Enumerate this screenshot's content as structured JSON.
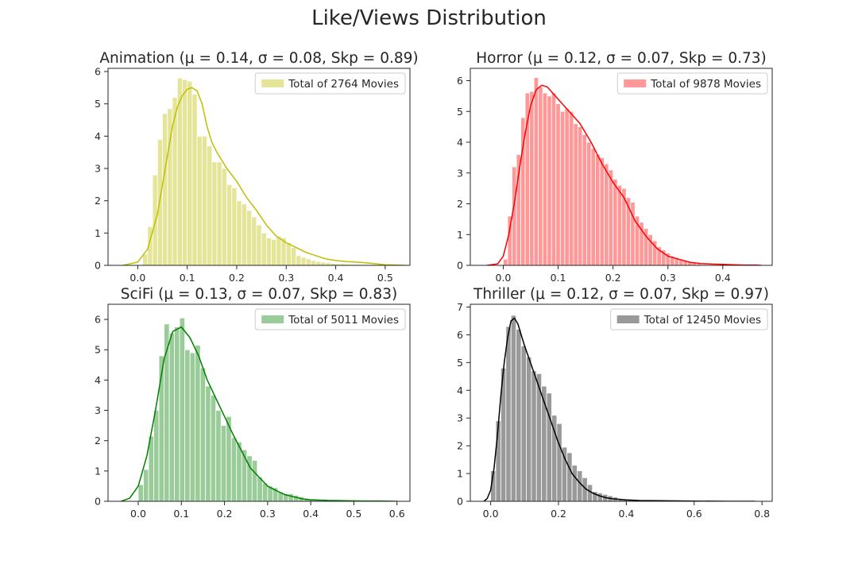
{
  "title": "Like/Views Distribution",
  "chart_data": [
    {
      "type": "histogram",
      "title": "Animation (μ = 0.14, σ = 0.08, Skp = 0.89)",
      "legend": "Total of 2764 Movies",
      "legend_position": "top-right",
      "bar_color": "#bfbf00",
      "bar_opacity": 0.4,
      "kde_color": "#bfbf00",
      "xlim": [
        -0.06,
        0.55
      ],
      "ylim": [
        0,
        6.1
      ],
      "xticks": [
        "0.0",
        "0.1",
        "0.2",
        "0.3",
        "0.4",
        "0.5"
      ],
      "yticks": [
        "0",
        "1",
        "2",
        "3",
        "4",
        "5",
        "6"
      ],
      "bin_width": 0.01,
      "bins_x": [
        0.01,
        0.02,
        0.03,
        0.04,
        0.05,
        0.06,
        0.07,
        0.08,
        0.09,
        0.1,
        0.11,
        0.12,
        0.13,
        0.14,
        0.15,
        0.16,
        0.17,
        0.18,
        0.19,
        0.2,
        0.21,
        0.22,
        0.23,
        0.24,
        0.25,
        0.26,
        0.27,
        0.28,
        0.29,
        0.3,
        0.31,
        0.32,
        0.33,
        0.34,
        0.35,
        0.36,
        0.37,
        0.38,
        0.39,
        0.4,
        0.41,
        0.42,
        0.43,
        0.44,
        0.45,
        0.46,
        0.47,
        0.48,
        0.49,
        0.5
      ],
      "bins_y": [
        0.35,
        1.2,
        2.8,
        3.9,
        4.7,
        4.85,
        5.2,
        5.8,
        5.75,
        5.7,
        5.3,
        4.0,
        4.0,
        3.7,
        3.2,
        3.2,
        3.0,
        2.5,
        2.4,
        2.0,
        1.9,
        1.7,
        1.5,
        1.25,
        1.0,
        0.85,
        0.8,
        0.9,
        0.85,
        0.7,
        0.55,
        0.3,
        0.25,
        0.2,
        0.15,
        0.12,
        0.1,
        0.08,
        0.06,
        0.05,
        0.05,
        0.04,
        0.03,
        0.03,
        0.02,
        0.02,
        0.01,
        0.01,
        0.01,
        0.01
      ],
      "kde_x": [
        -0.03,
        0.0,
        0.02,
        0.04,
        0.05,
        0.06,
        0.07,
        0.08,
        0.09,
        0.1,
        0.11,
        0.12,
        0.13,
        0.14,
        0.15,
        0.16,
        0.18,
        0.2,
        0.22,
        0.24,
        0.26,
        0.28,
        0.3,
        0.32,
        0.34,
        0.36,
        0.38,
        0.4,
        0.42,
        0.44,
        0.46,
        0.48,
        0.5,
        0.52,
        0.54
      ],
      "kde_y": [
        0.0,
        0.1,
        0.5,
        1.6,
        2.5,
        3.4,
        4.3,
        4.9,
        5.25,
        5.45,
        5.5,
        5.4,
        5.0,
        4.3,
        3.8,
        3.5,
        3.0,
        2.6,
        2.1,
        1.7,
        1.25,
        0.9,
        0.7,
        0.55,
        0.4,
        0.3,
        0.2,
        0.15,
        0.12,
        0.1,
        0.08,
        0.05,
        0.02,
        0.01,
        0.0
      ]
    },
    {
      "type": "histogram",
      "title": "Horror (μ = 0.12, σ = 0.07, Skp = 0.73)",
      "legend": "Total of 9878 Movies",
      "legend_position": "top-right",
      "bar_color": "#ff0000",
      "bar_opacity": 0.4,
      "kde_color": "#ff0000",
      "xlim": [
        -0.06,
        0.49
      ],
      "ylim": [
        0,
        6.4
      ],
      "xticks": [
        "0.0",
        "0.1",
        "0.2",
        "0.3",
        "0.4"
      ],
      "yticks": [
        "0",
        "1",
        "2",
        "3",
        "4",
        "5",
        "6"
      ],
      "bin_width": 0.008,
      "bins_x": [
        0.0,
        0.008,
        0.016,
        0.024,
        0.032,
        0.04,
        0.048,
        0.056,
        0.064,
        0.072,
        0.08,
        0.088,
        0.096,
        0.104,
        0.112,
        0.12,
        0.128,
        0.136,
        0.144,
        0.152,
        0.16,
        0.168,
        0.176,
        0.184,
        0.192,
        0.2,
        0.208,
        0.216,
        0.224,
        0.232,
        0.24,
        0.248,
        0.256,
        0.264,
        0.272,
        0.28,
        0.288,
        0.296,
        0.304,
        0.312,
        0.32,
        0.328,
        0.336,
        0.344,
        0.352
      ],
      "bins_y": [
        0.2,
        1.6,
        3.2,
        3.6,
        4.8,
        5.6,
        5.65,
        6.1,
        5.8,
        5.6,
        5.5,
        5.6,
        5.25,
        5.0,
        5.1,
        5.0,
        4.6,
        4.5,
        4.25,
        4.0,
        3.8,
        3.6,
        3.5,
        3.3,
        3.1,
        2.8,
        2.6,
        2.5,
        2.2,
        2.05,
        1.6,
        1.4,
        1.2,
        1.0,
        0.8,
        0.6,
        0.5,
        0.4,
        0.3,
        0.25,
        0.2,
        0.15,
        0.1,
        0.08,
        0.05
      ],
      "kde_x": [
        -0.03,
        -0.01,
        0.0,
        0.01,
        0.02,
        0.03,
        0.04,
        0.05,
        0.06,
        0.07,
        0.08,
        0.09,
        0.1,
        0.12,
        0.14,
        0.16,
        0.18,
        0.2,
        0.22,
        0.24,
        0.26,
        0.28,
        0.3,
        0.32,
        0.34,
        0.36,
        0.38,
        0.4,
        0.42,
        0.44,
        0.46,
        0.47
      ],
      "kde_y": [
        0.0,
        0.05,
        0.3,
        1.0,
        2.0,
        3.2,
        4.3,
        5.2,
        5.7,
        5.85,
        5.8,
        5.6,
        5.4,
        5.0,
        4.6,
        4.0,
        3.3,
        2.7,
        2.2,
        1.45,
        0.95,
        0.55,
        0.3,
        0.2,
        0.1,
        0.06,
        0.04,
        0.03,
        0.02,
        0.01,
        0.01,
        0.0
      ]
    },
    {
      "type": "histogram",
      "title": "SciFi (μ = 0.13, σ = 0.07, Skp = 0.83)",
      "legend": "Total of 5011 Movies",
      "legend_position": "top-right",
      "bar_color": "#008000",
      "bar_opacity": 0.4,
      "kde_color": "#008000",
      "xlim": [
        -0.07,
        0.63
      ],
      "ylim": [
        0,
        6.5
      ],
      "xticks": [
        "0.0",
        "0.1",
        "0.2",
        "0.3",
        "0.4",
        "0.5",
        "0.6"
      ],
      "yticks": [
        "0",
        "1",
        "2",
        "3",
        "4",
        "5",
        "6"
      ],
      "bin_width": 0.012,
      "bins_x": [
        0.0,
        0.012,
        0.024,
        0.036,
        0.048,
        0.06,
        0.072,
        0.084,
        0.096,
        0.108,
        0.12,
        0.132,
        0.144,
        0.156,
        0.168,
        0.18,
        0.192,
        0.204,
        0.216,
        0.228,
        0.24,
        0.252,
        0.264,
        0.276,
        0.288,
        0.3,
        0.312,
        0.324,
        0.336,
        0.348,
        0.36,
        0.372,
        0.384,
        0.396,
        0.408,
        0.42,
        0.432,
        0.444,
        0.456,
        0.468,
        0.48,
        0.492,
        0.504,
        0.516,
        0.528,
        0.54,
        0.552,
        0.564,
        0.576,
        0.588
      ],
      "bins_y": [
        0.55,
        1.05,
        2.15,
        3.0,
        4.8,
        5.85,
        5.55,
        5.75,
        6.05,
        5.0,
        4.9,
        5.15,
        4.4,
        3.8,
        3.5,
        3.0,
        2.5,
        2.8,
        2.1,
        1.95,
        1.7,
        1.5,
        1.35,
        0.8,
        0.6,
        0.5,
        0.45,
        0.3,
        0.25,
        0.25,
        0.2,
        0.15,
        0.1,
        0.08,
        0.06,
        0.05,
        0.04,
        0.03,
        0.03,
        0.02,
        0.02,
        0.02,
        0.01,
        0.01,
        0.01,
        0.01,
        0.01,
        0.01,
        0.01,
        0.01
      ],
      "kde_x": [
        -0.04,
        -0.02,
        0.0,
        0.02,
        0.04,
        0.06,
        0.08,
        0.1,
        0.12,
        0.14,
        0.16,
        0.18,
        0.2,
        0.22,
        0.24,
        0.26,
        0.28,
        0.3,
        0.32,
        0.34,
        0.36,
        0.38,
        0.4,
        0.44,
        0.48,
        0.52,
        0.56,
        0.6
      ],
      "kde_y": [
        0.0,
        0.1,
        0.5,
        1.5,
        3.0,
        4.7,
        5.6,
        5.75,
        5.4,
        4.8,
        4.0,
        3.4,
        2.8,
        2.2,
        1.65,
        1.1,
        0.8,
        0.5,
        0.35,
        0.22,
        0.15,
        0.08,
        0.05,
        0.03,
        0.02,
        0.01,
        0.01,
        0.0
      ]
    },
    {
      "type": "histogram",
      "title": "Thriller (μ = 0.12, σ = 0.07, Skp = 0.97)",
      "legend": "Total of 12450 Movies",
      "legend_position": "top-right",
      "bar_color": "#000000",
      "bar_opacity": 0.4,
      "kde_color": "#000000",
      "xlim": [
        -0.06,
        0.83
      ],
      "ylim": [
        0,
        7.1
      ],
      "xticks": [
        "0.0",
        "0.2",
        "0.4",
        "0.6",
        "0.8"
      ],
      "yticks": [
        "0",
        "1",
        "2",
        "3",
        "4",
        "5",
        "6",
        "7"
      ],
      "bin_width": 0.015,
      "bins_x": [
        0.0,
        0.015,
        0.03,
        0.045,
        0.06,
        0.075,
        0.09,
        0.105,
        0.12,
        0.135,
        0.15,
        0.165,
        0.18,
        0.195,
        0.21,
        0.225,
        0.24,
        0.255,
        0.27,
        0.285,
        0.3,
        0.315,
        0.33,
        0.345,
        0.36,
        0.375,
        0.39,
        0.405,
        0.42,
        0.435,
        0.45,
        0.465,
        0.48,
        0.495,
        0.51,
        0.525,
        0.54,
        0.555,
        0.57,
        0.585,
        0.6,
        0.615,
        0.63,
        0.645,
        0.66,
        0.675,
        0.69,
        0.705,
        0.72,
        0.735,
        0.75,
        0.765
      ],
      "bins_y": [
        1.1,
        2.9,
        4.8,
        6.3,
        6.7,
        6.2,
        5.6,
        5.2,
        4.7,
        4.6,
        4.15,
        3.9,
        3.1,
        2.8,
        1.95,
        1.75,
        1.3,
        1.1,
        0.85,
        0.6,
        0.35,
        0.3,
        0.25,
        0.2,
        0.15,
        0.1,
        0.08,
        0.06,
        0.05,
        0.04,
        0.03,
        0.03,
        0.02,
        0.02,
        0.02,
        0.01,
        0.01,
        0.01,
        0.01,
        0.01,
        0.01,
        0.01,
        0.01,
        0.01,
        0.01,
        0.01,
        0.01,
        0.01,
        0.01,
        0.01,
        0.01,
        0.01
      ],
      "kde_x": [
        -0.02,
        -0.01,
        0.0,
        0.01,
        0.02,
        0.03,
        0.04,
        0.05,
        0.06,
        0.07,
        0.08,
        0.09,
        0.1,
        0.12,
        0.14,
        0.16,
        0.18,
        0.2,
        0.22,
        0.24,
        0.26,
        0.28,
        0.3,
        0.32,
        0.34,
        0.36,
        0.4,
        0.44,
        0.5,
        0.6,
        0.7,
        0.78
      ],
      "kde_y": [
        0.0,
        0.1,
        0.4,
        1.2,
        2.4,
        3.8,
        5.0,
        5.9,
        6.5,
        6.6,
        6.4,
        6.0,
        5.6,
        4.9,
        4.2,
        3.5,
        2.8,
        2.1,
        1.5,
        1.0,
        0.7,
        0.45,
        0.3,
        0.2,
        0.13,
        0.09,
        0.05,
        0.03,
        0.02,
        0.01,
        0.0,
        0.0
      ]
    }
  ]
}
